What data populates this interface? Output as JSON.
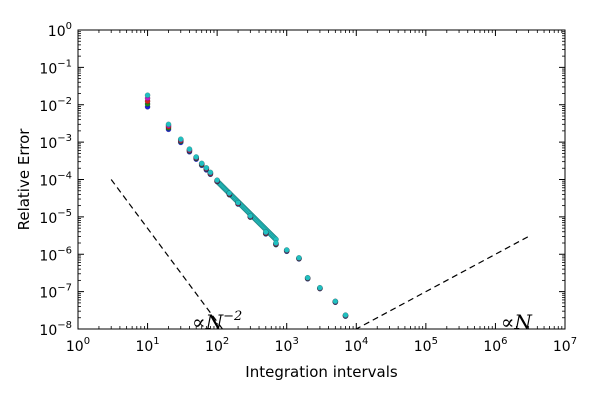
{
  "chart_data": {
    "type": "scatter",
    "title": "",
    "xlabel": "Integration intervals",
    "ylabel": "Relative Error",
    "xscale": "log",
    "yscale": "log",
    "xlim": [
      1,
      10000000
    ],
    "ylim": [
      1e-08,
      1
    ],
    "x_tick_exponents": [
      0,
      1,
      2,
      3,
      4,
      5,
      6,
      7
    ],
    "y_tick_exponents": [
      0,
      -1,
      -2,
      -3,
      -4,
      -5,
      -6,
      -7,
      -8
    ],
    "tick_base": "10",
    "grid": false,
    "legend": "none",
    "colors": {
      "series_blue": "#1f1fd8",
      "series_green": "#1a8a1a",
      "series_red": "#d42020",
      "series_magenta": "#c020c0",
      "series_cyan": "#20c0c0",
      "reference_line": "#000000"
    },
    "series": [
      {
        "color_key": "series_blue",
        "x": [
          10,
          20,
          30,
          40,
          50,
          60,
          70,
          80,
          100,
          150,
          200,
          300,
          500,
          700,
          1000,
          1500,
          2000,
          3000,
          5000,
          7000
        ],
        "y": [
          0.0088,
          0.0022,
          0.00098,
          0.00055,
          0.00035,
          0.00024,
          0.00018,
          0.000138,
          8.8e-05,
          3.9e-05,
          2.2e-05,
          9.8e-06,
          3.5e-06,
          1.8e-06,
          1.2e-06,
          7.5e-07,
          2.2e-07,
          1.2e-07,
          5.2e-08,
          2.2e-08
        ]
      },
      {
        "color_key": "series_green",
        "x": [
          10,
          20,
          30,
          40,
          50,
          60,
          70,
          80,
          100,
          150,
          200,
          300,
          500,
          700,
          1000,
          1500,
          2000,
          3000,
          5000,
          7000
        ],
        "y": [
          0.0105,
          0.0024,
          0.00105,
          0.00058,
          0.00037,
          0.00025,
          0.00019,
          0.000142,
          9e-05,
          4e-05,
          2.25e-05,
          1e-05,
          3.6e-06,
          1.85e-06,
          1.24e-06,
          7.7e-07,
          2.25e-07,
          1.22e-07,
          5.3e-08,
          2.25e-08
        ]
      },
      {
        "color_key": "series_red",
        "x": [
          10,
          20,
          30,
          40,
          50,
          60,
          70,
          80,
          100,
          150,
          200,
          300,
          500,
          700,
          1000,
          1500,
          2000,
          3000,
          5000,
          7000
        ],
        "y": [
          0.0125,
          0.0026,
          0.0011,
          0.0006,
          0.00038,
          0.00026,
          0.000195,
          0.000146,
          9.2e-05,
          4.1e-05,
          2.3e-05,
          1.02e-05,
          3.7e-06,
          1.9e-06,
          1.26e-06,
          7.8e-07,
          2.3e-07,
          1.24e-07,
          5.4e-08,
          2.3e-08
        ]
      },
      {
        "color_key": "series_magenta",
        "x": [
          10,
          20,
          30,
          40,
          50,
          60,
          70,
          80,
          100,
          150,
          200,
          300,
          500,
          700,
          1000,
          1500,
          2000,
          3000,
          5000,
          7000
        ],
        "y": [
          0.015,
          0.0028,
          0.00115,
          0.00062,
          0.00039,
          0.000265,
          0.0002,
          0.00015,
          9.4e-05,
          4.2e-05,
          2.35e-05,
          1.04e-05,
          3.8e-06,
          1.95e-06,
          1.28e-06,
          7.9e-07,
          2.32e-07,
          1.25e-07,
          5.45e-08,
          2.32e-08
        ]
      },
      {
        "color_key": "series_cyan",
        "x": [
          10,
          20,
          30,
          40,
          50,
          60,
          70,
          80,
          100,
          150,
          200,
          300,
          500,
          700,
          1000,
          1500,
          2000,
          3000,
          5000,
          7000
        ],
        "y": [
          0.018,
          0.003,
          0.0012,
          0.00065,
          0.0004,
          0.00027,
          0.000205,
          0.000155,
          9.6e-05,
          4.3e-05,
          2.4e-05,
          1.06e-05,
          3.9e-06,
          2e-06,
          1.3e-06,
          8e-07,
          2.35e-07,
          1.27e-07,
          5.5e-08,
          2.35e-08
        ]
      }
    ],
    "dense_band": {
      "x_from": 100,
      "x_to": 700,
      "y_from": 9e-05,
      "y_to": 2.5e-06,
      "color_key": "series_cyan"
    },
    "reference_lines": [
      {
        "label": "∝N⁻²",
        "x": [
          3,
          300
        ],
        "y": [
          0.0001,
          1e-09
        ]
      },
      {
        "label": "∝N",
        "x": [
          3000,
          3000000
        ],
        "y": [
          3e-09,
          3e-06
        ]
      }
    ],
    "annotations": [
      {
        "text": "∝N",
        "superscript": "−2",
        "anchor_x": 100,
        "anchor_y": 1e-08
      },
      {
        "text": "∝N",
        "superscript": "",
        "anchor_x": 2000000,
        "anchor_y": 1e-08
      }
    ]
  }
}
